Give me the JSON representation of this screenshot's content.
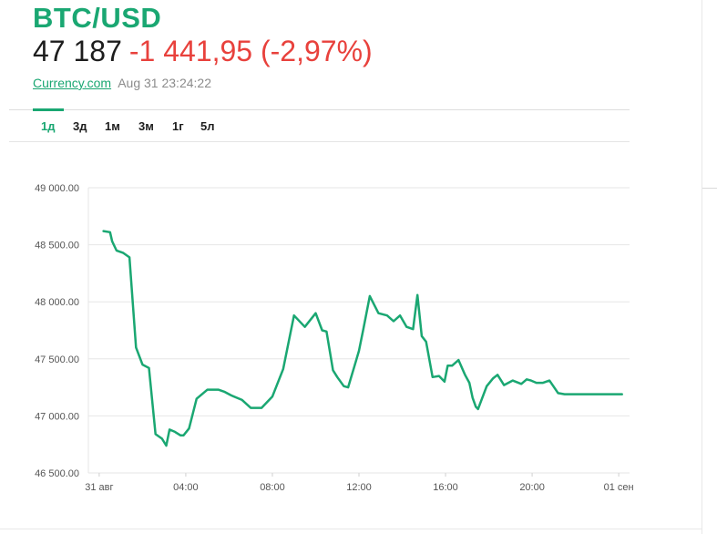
{
  "header": {
    "symbol": "BTC/USD",
    "price": "47 187",
    "change": "-1 441,95 (-2,97%)",
    "source_link": "Currency.com",
    "timestamp": "Aug 31 23:24:22"
  },
  "tabs": [
    {
      "label": "1д",
      "active": true
    },
    {
      "label": "3д",
      "active": false
    },
    {
      "label": "1м",
      "active": false
    },
    {
      "label": "3м",
      "active": false
    },
    {
      "label": "1г",
      "active": false
    },
    {
      "label": "5л",
      "active": false
    }
  ],
  "colors": {
    "accent": "#1aa772",
    "negative": "#e8413c",
    "line": "#1aa772"
  },
  "chart_data": {
    "type": "line",
    "title": "",
    "xlabel": "",
    "ylabel": "",
    "ylim": [
      46500,
      49000
    ],
    "xlim": [
      -0.5,
      24.5
    ],
    "yticks": [
      {
        "value": 49000,
        "label": "49 000.00"
      },
      {
        "value": 48500,
        "label": "48 500.00"
      },
      {
        "value": 48000,
        "label": "48 000.00"
      },
      {
        "value": 47500,
        "label": "47 500.00"
      },
      {
        "value": 47000,
        "label": "47 000.00"
      },
      {
        "value": 46500,
        "label": "46 500.00"
      }
    ],
    "xticks": [
      {
        "value": 0,
        "label": "31 авг"
      },
      {
        "value": 4,
        "label": "04:00"
      },
      {
        "value": 8,
        "label": "08:00"
      },
      {
        "value": 12,
        "label": "12:00"
      },
      {
        "value": 16,
        "label": "16:00"
      },
      {
        "value": 20,
        "label": "20:00"
      },
      {
        "value": 24,
        "label": "01 сен"
      }
    ],
    "grid": true,
    "series": [
      {
        "x": [
          0.2,
          0.5,
          0.6,
          0.8,
          1.1,
          1.4,
          1.7,
          2.0,
          2.3,
          2.6,
          2.9,
          3.1,
          3.25,
          3.5,
          3.75,
          3.9,
          4.15,
          4.5,
          5.0,
          5.5,
          5.8,
          6.1,
          6.6,
          7.0,
          7.5,
          8.0,
          8.5,
          9.0,
          9.5,
          10.0,
          10.3,
          10.5,
          10.8,
          11.0,
          11.3,
          11.5,
          11.8,
          12.0,
          12.2,
          12.5,
          12.9,
          13.3,
          13.6,
          13.9,
          14.2,
          14.5,
          14.7,
          14.9,
          15.1,
          15.4,
          15.7,
          15.95,
          16.1,
          16.3,
          16.6,
          16.9,
          17.1,
          17.25,
          17.4,
          17.5,
          17.9,
          18.2,
          18.4,
          18.7,
          19.1,
          19.5,
          19.75,
          19.95,
          20.2,
          20.5,
          20.8,
          21.2,
          21.5,
          21.8,
          22.1,
          22.4,
          22.55,
          22.8,
          23.0,
          23.3,
          23.55,
          23.65,
          23.8,
          24.0,
          24.15
        ],
        "y": [
          48620,
          48610,
          48530,
          48450,
          48430,
          48390,
          47600,
          47450,
          47420,
          46840,
          46800,
          46740,
          46880,
          46860,
          46830,
          46830,
          46890,
          47150,
          47230,
          47230,
          47210,
          47180,
          47140,
          47070,
          47070,
          47170,
          47410,
          47880,
          47780,
          47900,
          47750,
          47740,
          47400,
          47340,
          47260,
          47250,
          47440,
          47570,
          47760,
          48050,
          47900,
          47880,
          47830,
          47880,
          47780,
          47760,
          48060,
          47700,
          47650,
          47340,
          47350,
          47300,
          47440,
          47440,
          47490,
          47360,
          47290,
          47160,
          47080,
          47060,
          47260,
          47330,
          47360,
          47270,
          47310,
          47280,
          47320,
          47310,
          47290,
          47290,
          47310,
          47200,
          47190,
          47190,
          47190,
          47190,
          47190,
          47190,
          47190,
          47190,
          47190,
          47190,
          47190,
          47190,
          47190
        ]
      }
    ]
  }
}
